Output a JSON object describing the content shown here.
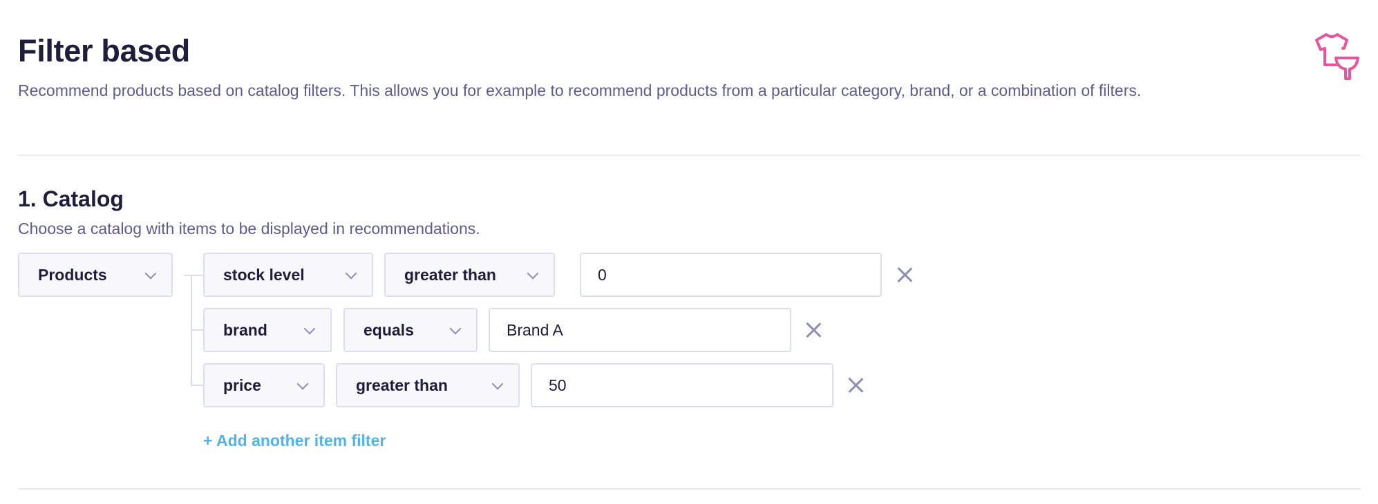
{
  "header": {
    "title": "Filter based",
    "description": "Recommend products based on catalog filters. This allows you for example to recommend products from a particular category, brand, or a combination of filters.",
    "icon": "shirt-filter-icon",
    "icon_color": "#e8559f"
  },
  "catalog": {
    "title": "1. Catalog",
    "subtitle": "Choose a catalog with items to be displayed in recommendations.",
    "catalog_select": "Products",
    "filters": [
      {
        "field": "stock level",
        "operator": "greater than",
        "value": "0"
      },
      {
        "field": "brand",
        "operator": "equals",
        "value": "Brand A"
      },
      {
        "field": "price",
        "operator": "greater than",
        "value": "50"
      }
    ],
    "add_filter_label": "+ Add another item filter"
  },
  "colors": {
    "link": "#4fb4ea",
    "text": "#1f1d3b",
    "muted": "#5d5a8c",
    "border": "#dcdeee"
  }
}
